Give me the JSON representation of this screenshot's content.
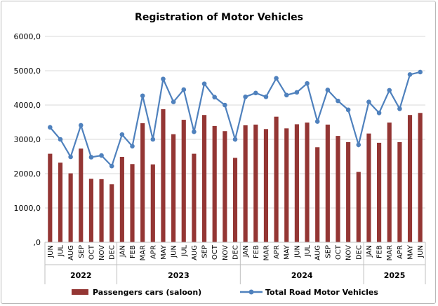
{
  "chart_data": {
    "type": "bar",
    "title": "Registration of Motor Vehicles",
    "xlabel": "",
    "ylabel": "",
    "ylim": [
      0,
      6000
    ],
    "yticks": [
      "6000,0",
      "5000,0",
      "4000,0",
      "3000,0",
      "2000,0",
      "1000,0",
      ",0"
    ],
    "ytick_values": [
      6000,
      5000,
      4000,
      3000,
      2000,
      1000,
      0
    ],
    "grid": true,
    "legend_position": "bottom",
    "categories": [
      "JUN",
      "JUL",
      "AUG",
      "SEP",
      "OCT",
      "NOV",
      "DEC",
      "JAN",
      "FEB",
      "MAR",
      "APR",
      "MAY",
      "JUN",
      "JUL",
      "AUG",
      "SEP",
      "OCT",
      "NOV",
      "DEC",
      "JAN",
      "FEB",
      "MAR",
      "APR",
      "MAY",
      "JUN",
      "JUL",
      "AUG",
      "SEP",
      "OCT",
      "NOV",
      "DEC",
      "JAN",
      "FEB",
      "MAR",
      "APR",
      "MAY",
      "JUN"
    ],
    "year_groups": [
      {
        "label": "2022",
        "start": 0,
        "end": 6
      },
      {
        "label": "2023",
        "start": 7,
        "end": 18
      },
      {
        "label": "2024",
        "start": 19,
        "end": 30
      },
      {
        "label": "2025",
        "start": 31,
        "end": 36
      }
    ],
    "series": [
      {
        "name": "Passengers cars (saloon)",
        "kind": "bar",
        "color": "#943634",
        "values": [
          2580,
          2320,
          2010,
          2730,
          1850,
          1840,
          1690,
          2490,
          2280,
          3470,
          2270,
          3880,
          3150,
          3570,
          2580,
          3710,
          3390,
          3240,
          2460,
          3410,
          3430,
          3300,
          3660,
          3320,
          3440,
          3490,
          2770,
          3430,
          3100,
          2920,
          2050,
          3170,
          2900,
          3490,
          2920,
          3710,
          3770
        ]
      },
      {
        "name": "Total Road Motor Vehicles",
        "kind": "line",
        "color": "#4f81bd",
        "values": [
          3350,
          3000,
          2490,
          3410,
          2480,
          2530,
          2220,
          3140,
          2800,
          4270,
          3000,
          4760,
          4090,
          4450,
          3220,
          4620,
          4230,
          4000,
          3000,
          4240,
          4350,
          4240,
          4780,
          4290,
          4370,
          4630,
          3520,
          4440,
          4120,
          3860,
          2840,
          4090,
          3770,
          4430,
          3890,
          4890,
          4960
        ]
      }
    ]
  }
}
